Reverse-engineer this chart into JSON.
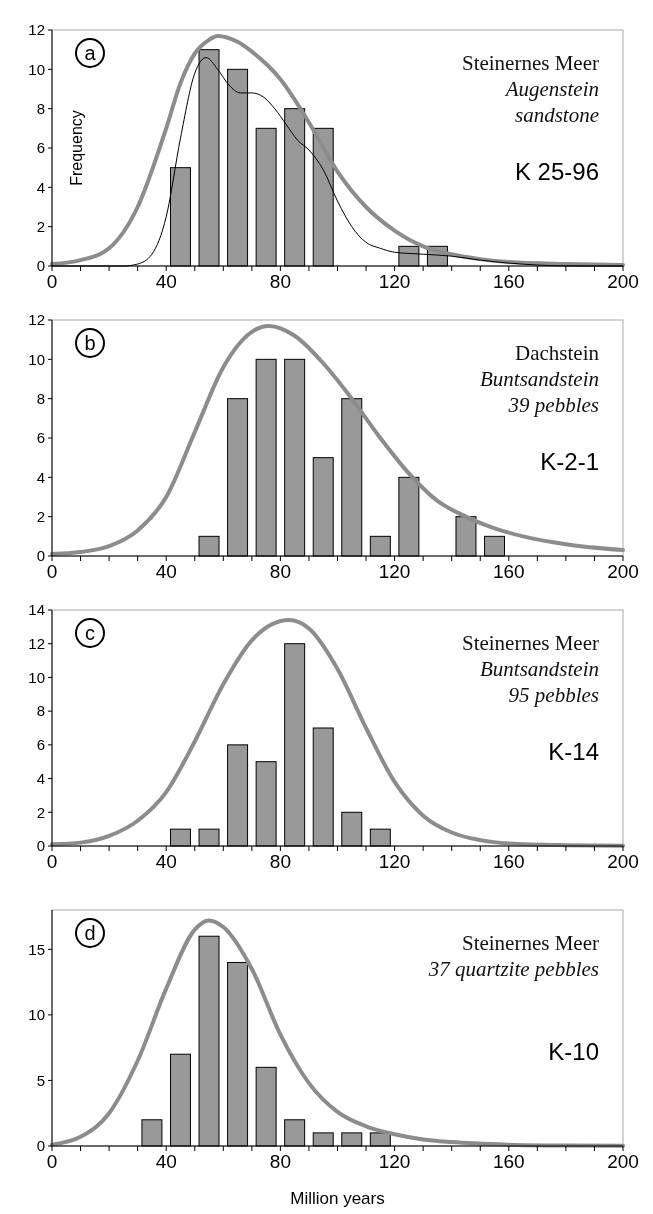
{
  "chart_data": [
    {
      "type": "histogram",
      "bins": [
        40,
        50,
        60,
        70,
        80,
        90,
        100,
        110,
        120,
        130,
        140
      ],
      "values": [
        5,
        11,
        10,
        7,
        8,
        7,
        0,
        0,
        1,
        1
      ],
      "color": "#999999",
      "ylabel": "Frequency",
      "xlim": [
        0,
        200
      ],
      "ylim": [
        0,
        12
      ],
      "xticks": [
        0,
        {
          "value": 10,
          "label": null
        },
        {
          "value": 20,
          "label": null
        },
        {
          "value": 30,
          "label": null
        },
        40,
        {
          "value": 50,
          "label": null
        },
        {
          "value": 60,
          "label": null
        },
        {
          "value": 70,
          "label": null
        },
        80,
        {
          "value": 90,
          "label": null
        },
        {
          "value": 100,
          "label": null
        },
        {
          "value": 110,
          "label": null
        },
        120,
        {
          "value": 130,
          "label": null
        },
        {
          "value": 140,
          "label": null
        },
        {
          "value": 150,
          "label": null
        },
        160,
        {
          "value": 170,
          "label": null
        },
        {
          "value": 180,
          "label": null
        },
        {
          "value": 190,
          "label": null
        },
        200
      ],
      "yticks": [
        0,
        2,
        4,
        6,
        8,
        10,
        12
      ],
      "series": [
        {
          "type": "line",
          "color": "#8c8c8c",
          "x": [
            0,
            10,
            20,
            30,
            40,
            45,
            50,
            55,
            58,
            65,
            70,
            80,
            90,
            100,
            110,
            120,
            130,
            140,
            150,
            160,
            180,
            200
          ],
          "values": [
            0.1,
            0.3,
            0.9,
            3,
            7,
            9.3,
            10.8,
            11.5,
            11.7,
            11.4,
            10.9,
            9.5,
            7.3,
            4.8,
            3.0,
            1.8,
            1.0,
            0.6,
            0.35,
            0.2,
            0.1,
            0.05
          ]
        },
        {
          "type": "line",
          "color": "#000000",
          "x": [
            0,
            25,
            30,
            35,
            40,
            45,
            50,
            54,
            58,
            62,
            66,
            70,
            74,
            78,
            82,
            86,
            90,
            95,
            100,
            105,
            110,
            115,
            120,
            130,
            140,
            150,
            160,
            170,
            180,
            200
          ],
          "values": [
            0,
            0,
            0.1,
            0.6,
            2.5,
            6.5,
            9.8,
            10.6,
            10.0,
            9.2,
            8.8,
            8.8,
            8.6,
            8.0,
            7.2,
            6.4,
            5.9,
            4.9,
            3.3,
            2.0,
            1.2,
            0.9,
            0.7,
            0.6,
            0.5,
            0.3,
            0.15,
            0.05,
            0,
            0
          ]
        }
      ],
      "annotations": [
        "a",
        "Steinernes Meer",
        "Augenstein",
        "sandstone",
        "K 25-96"
      ]
    },
    {
      "type": "histogram",
      "bins": [
        50,
        60,
        70,
        80,
        90,
        100,
        110,
        120,
        130,
        140,
        150,
        160
      ],
      "values": [
        1,
        8,
        10,
        10,
        5,
        8,
        1,
        4,
        0,
        2,
        1
      ],
      "color": "#999999",
      "xlim": [
        0,
        200
      ],
      "ylim": [
        0,
        12
      ],
      "xticks": [
        0,
        {
          "value": 10,
          "label": null
        },
        {
          "value": 20,
          "label": null
        },
        {
          "value": 30,
          "label": null
        },
        40,
        {
          "value": 50,
          "label": null
        },
        {
          "value": 60,
          "label": null
        },
        {
          "value": 70,
          "label": null
        },
        80,
        {
          "value": 90,
          "label": null
        },
        {
          "value": 100,
          "label": null
        },
        {
          "value": 110,
          "label": null
        },
        120,
        {
          "value": 130,
          "label": null
        },
        {
          "value": 140,
          "label": null
        },
        {
          "value": 150,
          "label": null
        },
        160,
        {
          "value": 170,
          "label": null
        },
        {
          "value": 180,
          "label": null
        },
        {
          "value": 190,
          "label": null
        },
        200
      ],
      "yticks": [
        0,
        2,
        4,
        6,
        8,
        10,
        12
      ],
      "series": [
        {
          "type": "line",
          "color": "#8c8c8c",
          "x": [
            0,
            10,
            20,
            30,
            40,
            50,
            60,
            70,
            76,
            85,
            95,
            105,
            115,
            125,
            135,
            145,
            155,
            165,
            180,
            200
          ],
          "values": [
            0.1,
            0.2,
            0.5,
            1.3,
            3,
            6.3,
            9.6,
            11.4,
            11.7,
            11.2,
            9.8,
            8.0,
            6.0,
            4.2,
            2.8,
            2.0,
            1.4,
            1.0,
            0.6,
            0.3
          ]
        }
      ],
      "annotations": [
        "b",
        "Dachstein",
        "Buntsandstein",
        "39 pebbles",
        "K-2-1"
      ]
    },
    {
      "type": "histogram",
      "bins": [
        40,
        50,
        60,
        70,
        80,
        90,
        100,
        110,
        120
      ],
      "values": [
        1,
        1,
        6,
        5,
        12,
        7,
        2,
        1
      ],
      "color": "#999999",
      "xlim": [
        0,
        200
      ],
      "ylim": [
        0,
        14
      ],
      "xticks": [
        0,
        {
          "value": 10,
          "label": null
        },
        {
          "value": 20,
          "label": null
        },
        {
          "value": 30,
          "label": null
        },
        40,
        {
          "value": 50,
          "label": null
        },
        {
          "value": 60,
          "label": null
        },
        {
          "value": 70,
          "label": null
        },
        80,
        {
          "value": 90,
          "label": null
        },
        {
          "value": 100,
          "label": null
        },
        {
          "value": 110,
          "label": null
        },
        120,
        {
          "value": 130,
          "label": null
        },
        {
          "value": 140,
          "label": null
        },
        {
          "value": 150,
          "label": null
        },
        160,
        {
          "value": 170,
          "label": null
        },
        {
          "value": 180,
          "label": null
        },
        {
          "value": 190,
          "label": null
        },
        200
      ],
      "yticks": [
        0,
        2,
        4,
        6,
        8,
        10,
        12,
        14
      ],
      "series": [
        {
          "type": "line",
          "color": "#8c8c8c",
          "x": [
            0,
            10,
            20,
            30,
            40,
            50,
            60,
            70,
            83,
            90,
            100,
            110,
            120,
            130,
            140,
            150,
            160,
            180,
            200
          ],
          "values": [
            0.1,
            0.2,
            0.6,
            1.5,
            3.2,
            6.2,
            9.6,
            12.2,
            13.4,
            12.9,
            10.5,
            7.0,
            3.8,
            1.8,
            0.8,
            0.35,
            0.15,
            0.05,
            0.02
          ]
        }
      ],
      "annotations": [
        "c",
        "Steinernes Meer",
        "Buntsandstein",
        "95 pebbles",
        "K-14"
      ]
    },
    {
      "type": "histogram",
      "bins": [
        30,
        40,
        50,
        60,
        70,
        80,
        90,
        100,
        110,
        120
      ],
      "values": [
        2,
        7,
        16,
        14,
        6,
        2,
        1,
        1,
        1
      ],
      "color": "#999999",
      "xlabel": "Million years",
      "xlim": [
        0,
        200
      ],
      "ylim": [
        0,
        18
      ],
      "xticks": [
        0,
        {
          "value": 10,
          "label": null
        },
        {
          "value": 20,
          "label": null
        },
        {
          "value": 30,
          "label": null
        },
        40,
        {
          "value": 50,
          "label": null
        },
        {
          "value": 60,
          "label": null
        },
        {
          "value": 70,
          "label": null
        },
        80,
        {
          "value": 90,
          "label": null
        },
        {
          "value": 100,
          "label": null
        },
        {
          "value": 110,
          "label": null
        },
        120,
        {
          "value": 130,
          "label": null
        },
        {
          "value": 140,
          "label": null
        },
        {
          "value": 150,
          "label": null
        },
        160,
        {
          "value": 170,
          "label": null
        },
        {
          "value": 180,
          "label": null
        },
        {
          "value": 190,
          "label": null
        },
        200
      ],
      "yticks": [
        0,
        5,
        10,
        15
      ],
      "series": [
        {
          "type": "line",
          "color": "#8c8c8c",
          "x": [
            0,
            10,
            20,
            30,
            40,
            50,
            55,
            60,
            70,
            80,
            90,
            100,
            110,
            120,
            130,
            140,
            160,
            180,
            200
          ],
          "values": [
            0.1,
            0.7,
            2.5,
            6.5,
            12,
            16.5,
            17.2,
            16.7,
            13.5,
            8.5,
            4.8,
            2.6,
            1.5,
            0.9,
            0.5,
            0.3,
            0.1,
            0.03,
            0.01
          ]
        }
      ],
      "annotations": [
        "d",
        "Steinernes Meer",
        "37 quartzite pebbles",
        "K-10"
      ]
    }
  ]
}
